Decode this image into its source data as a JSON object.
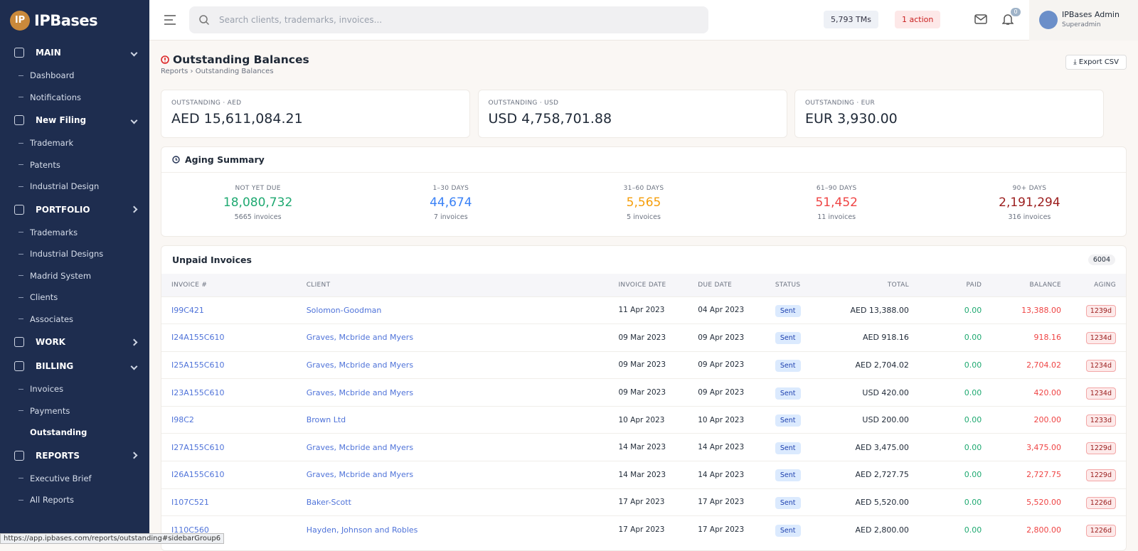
{
  "sidebar": {
    "logo_badge": "IP",
    "logo": "IPBases",
    "groups": [
      {
        "title": "MAIN",
        "open": true,
        "items": [
          "Dashboard",
          "Notifications"
        ]
      },
      {
        "title": "New Filing",
        "open": true,
        "items": [
          "Trademark",
          "Patents",
          "Industrial Design"
        ]
      },
      {
        "title": "PORTFOLIO",
        "open": false,
        "items": [
          "Trademarks",
          "Industrial Designs",
          "Madrid System",
          "Clients",
          "Associates"
        ]
      },
      {
        "title": "WORK",
        "open": false,
        "items": []
      },
      {
        "title": "BILLING",
        "open": true,
        "items": [
          "Invoices",
          "Payments",
          "Outstanding"
        ]
      },
      {
        "title": "REPORTS",
        "open": false,
        "items": [
          "Executive Brief",
          "All Reports"
        ]
      }
    ],
    "active": "Outstanding"
  },
  "topbar": {
    "search_placeholder": "Search clients, trademarks, invoices...",
    "tms": "5,793 TMs",
    "action": "1 action",
    "notification_count": "0",
    "user_name": "IPBases Admin",
    "user_role": "Superadmin"
  },
  "header": {
    "title": "Outstanding Balances",
    "breadcrumb": [
      "Reports",
      "Outstanding Balances"
    ],
    "export": "Export CSV"
  },
  "totals": [
    {
      "label": "OUTSTANDING · AED",
      "value": "AED 15,611,084.21"
    },
    {
      "label": "OUTSTANDING · USD",
      "value": "USD 4,758,701.88"
    },
    {
      "label": "OUTSTANDING · EUR",
      "value": "EUR 3,930.00"
    }
  ],
  "aging": {
    "title": "Aging Summary",
    "buckets": [
      {
        "label": "NOT YET DUE",
        "value": "18,080,732",
        "count": "5665 invoices"
      },
      {
        "label": "1–30 DAYS",
        "value": "44,674",
        "count": "7 invoices"
      },
      {
        "label": "31–60 DAYS",
        "value": "5,565",
        "count": "5 invoices"
      },
      {
        "label": "61–90 DAYS",
        "value": "51,452",
        "count": "11 invoices"
      },
      {
        "label": "90+ DAYS",
        "value": "2,191,294",
        "count": "316 invoices"
      }
    ]
  },
  "invoices": {
    "title": "Unpaid Invoices",
    "count": "6004",
    "columns": [
      "INVOICE #",
      "CLIENT",
      "INVOICE DATE",
      "DUE DATE",
      "STATUS",
      "TOTAL",
      "PAID",
      "BALANCE",
      "AGING"
    ],
    "rows": [
      [
        "I99C421",
        "Solomon-Goodman",
        "11 Apr 2023",
        "04 Apr 2023",
        "Sent",
        "AED 13,388.00",
        "0.00",
        "13,388.00",
        "1239d"
      ],
      [
        "I24A155C610",
        "Graves, Mcbride and Myers",
        "09 Mar 2023",
        "09 Apr 2023",
        "Sent",
        "AED 918.16",
        "0.00",
        "918.16",
        "1234d"
      ],
      [
        "I25A155C610",
        "Graves, Mcbride and Myers",
        "09 Mar 2023",
        "09 Apr 2023",
        "Sent",
        "AED 2,704.02",
        "0.00",
        "2,704.02",
        "1234d"
      ],
      [
        "I23A155C610",
        "Graves, Mcbride and Myers",
        "09 Mar 2023",
        "09 Apr 2023",
        "Sent",
        "USD 420.00",
        "0.00",
        "420.00",
        "1234d"
      ],
      [
        "I98C2",
        "Brown Ltd",
        "10 Apr 2023",
        "10 Apr 2023",
        "Sent",
        "USD 200.00",
        "0.00",
        "200.00",
        "1233d"
      ],
      [
        "I27A155C610",
        "Graves, Mcbride and Myers",
        "14 Mar 2023",
        "14 Apr 2023",
        "Sent",
        "AED 3,475.00",
        "0.00",
        "3,475.00",
        "1229d"
      ],
      [
        "I26A155C610",
        "Graves, Mcbride and Myers",
        "14 Mar 2023",
        "14 Apr 2023",
        "Sent",
        "AED 2,727.75",
        "0.00",
        "2,727.75",
        "1229d"
      ],
      [
        "I107C521",
        "Baker-Scott",
        "17 Apr 2023",
        "17 Apr 2023",
        "Sent",
        "AED 5,520.00",
        "0.00",
        "5,520.00",
        "1226d"
      ],
      [
        "I110C560",
        "Hayden, Johnson and Robles",
        "17 Apr 2023",
        "17 Apr 2023",
        "Sent",
        "AED 2,800.00",
        "0.00",
        "2,800.00",
        "1226d"
      ]
    ]
  },
  "status_url": "https://app.ipbases.com/reports/outstanding#sidebarGroup6"
}
